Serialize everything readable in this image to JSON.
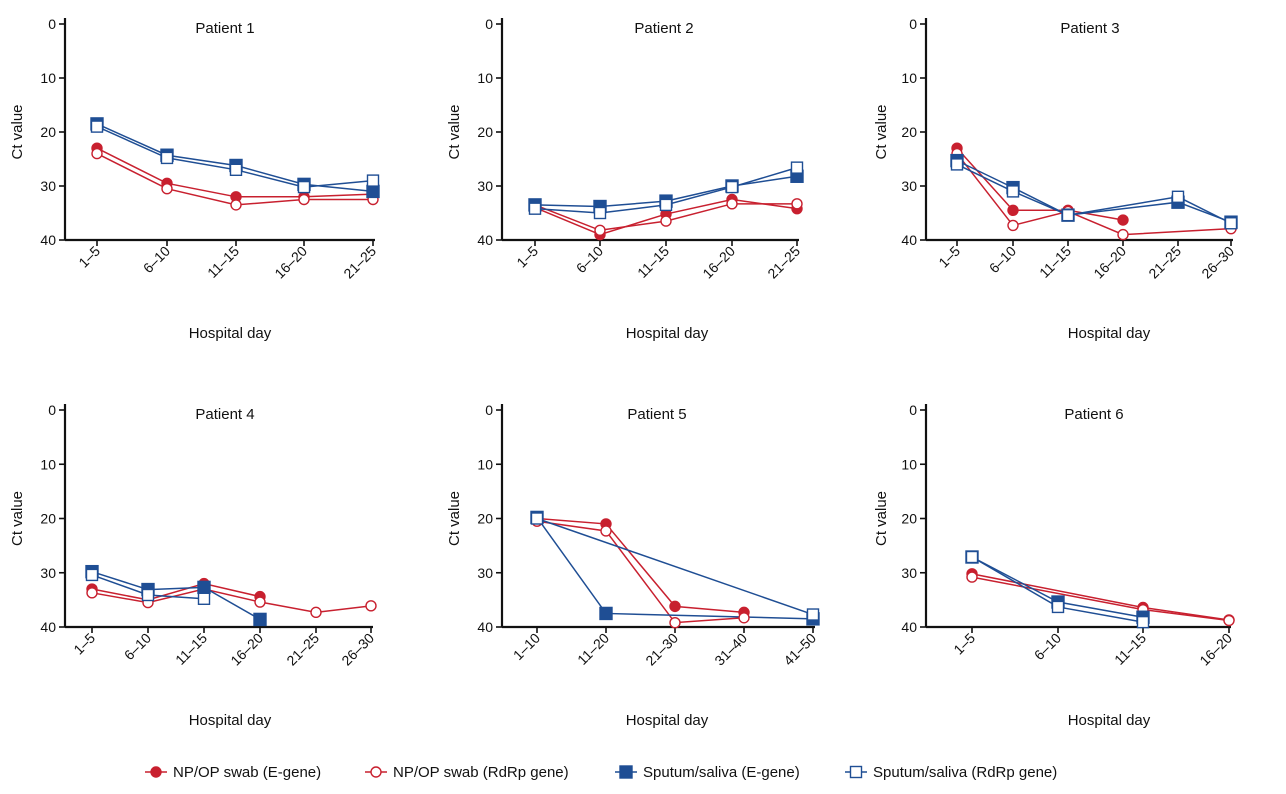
{
  "colors": {
    "red": "#c8202f",
    "blue": "#1f4e94",
    "axis": "#111111"
  },
  "legend": [
    {
      "label": "NP/OP swab (E-gene)",
      "color": "#c8202f",
      "marker": "circle",
      "filled": true
    },
    {
      "label": "NP/OP swab (RdRp gene)",
      "color": "#c8202f",
      "marker": "circle",
      "filled": false
    },
    {
      "label": "Sputum/saliva (E-gene)",
      "color": "#1f4e94",
      "marker": "square",
      "filled": true
    },
    {
      "label": "Sputum/saliva (RdRp gene)",
      "color": "#1f4e94",
      "marker": "square",
      "filled": false
    }
  ],
  "chart_data": [
    {
      "type": "line",
      "title": "Patient 1",
      "xlabel": "Hospital day",
      "ylabel": "Ct value",
      "ylim": [
        0,
        40
      ],
      "yticks": [
        "0",
        "10",
        "20",
        "30",
        "40"
      ],
      "y_inverted": true,
      "categories": [
        "1–5",
        "6–10",
        "11–15",
        "16–20",
        "21–25"
      ],
      "series": [
        {
          "name": "NP/OP swab (E-gene)",
          "values": [
            23,
            29.5,
            32,
            32,
            31.5
          ]
        },
        {
          "name": "NP/OP swab (RdRp gene)",
          "values": [
            24,
            30.5,
            33.5,
            32.5,
            32.5
          ]
        },
        {
          "name": "Sputum/saliva (E-gene)",
          "values": [
            18.5,
            24.3,
            26.2,
            29.7,
            31
          ]
        },
        {
          "name": "Sputum/saliva (RdRp gene)",
          "values": [
            19,
            24.8,
            27,
            30.2,
            29
          ]
        }
      ]
    },
    {
      "type": "line",
      "title": "Patient 2",
      "xlabel": "Hospital day",
      "ylabel": "Ct value",
      "ylim": [
        0,
        40
      ],
      "yticks": [
        "0",
        "10",
        "20",
        "30",
        "40"
      ],
      "y_inverted": true,
      "categories": [
        "1–5",
        "6–10",
        "11–15",
        "16–20",
        "21–25"
      ],
      "series": [
        {
          "name": "NP/OP swab (E-gene)",
          "values": [
            34,
            39,
            35.2,
            32.5,
            34.2
          ]
        },
        {
          "name": "NP/OP swab (RdRp gene)",
          "values": [
            33.5,
            38.2,
            36.5,
            33.3,
            33.3
          ]
        },
        {
          "name": "Sputum/saliva (E-gene)",
          "values": [
            33.5,
            33.8,
            32.8,
            30,
            28.2
          ]
        },
        {
          "name": "Sputum/saliva (RdRp gene)",
          "values": [
            34.2,
            35,
            33.5,
            30.2,
            26.6
          ]
        }
      ]
    },
    {
      "type": "line",
      "title": "Patient 3",
      "xlabel": "Hospital day",
      "ylabel": "Ct value",
      "ylim": [
        0,
        40
      ],
      "yticks": [
        "0",
        "10",
        "20",
        "30",
        "40"
      ],
      "y_inverted": true,
      "categories": [
        "1–5",
        "6–10",
        "11–15",
        "16–20",
        "21–25",
        "26–30"
      ],
      "series": [
        {
          "name": "NP/OP swab (E-gene)",
          "values": [
            23,
            34.5,
            34.5,
            36.3,
            null,
            null
          ]
        },
        {
          "name": "NP/OP swab (RdRp gene)",
          "values": [
            24,
            37.3,
            34.7,
            39,
            null,
            37.9
          ]
        },
        {
          "name": "Sputum/saliva (E-gene)",
          "values": [
            25.3,
            30.3,
            35.4,
            null,
            33,
            36.7
          ]
        },
        {
          "name": "Sputum/saliva (RdRp gene)",
          "values": [
            26,
            31,
            35.4,
            null,
            32,
            36.9
          ]
        }
      ]
    },
    {
      "type": "line",
      "title": "Patient 4",
      "xlabel": "Hospital day",
      "ylabel": "Ct value",
      "ylim": [
        0,
        40
      ],
      "yticks": [
        "0",
        "10",
        "20",
        "30",
        "40"
      ],
      "y_inverted": true,
      "categories": [
        "1–5",
        "6–10",
        "11–15",
        "16–20",
        "21–25",
        "26–30"
      ],
      "series": [
        {
          "name": "NP/OP swab (E-gene)",
          "values": [
            33,
            35,
            32,
            34.4,
            null,
            null
          ]
        },
        {
          "name": "NP/OP swab (RdRp gene)",
          "values": [
            33.7,
            35.5,
            33,
            35.4,
            37.3,
            36.1
          ]
        },
        {
          "name": "Sputum/saliva (E-gene)",
          "values": [
            29.8,
            33.1,
            32.7,
            38.6,
            null,
            null
          ]
        },
        {
          "name": "Sputum/saliva (RdRp gene)",
          "values": [
            30.4,
            34.1,
            34.8,
            null,
            null,
            null
          ]
        }
      ]
    },
    {
      "type": "line",
      "title": "Patient 5",
      "xlabel": "Hospital day",
      "ylabel": "Ct value",
      "ylim": [
        0,
        40
      ],
      "yticks": [
        "0",
        "10",
        "20",
        "30",
        "40"
      ],
      "y_inverted": true,
      "categories": [
        "1–10",
        "11–20",
        "21–30",
        "31–40",
        "41–50"
      ],
      "series": [
        {
          "name": "NP/OP swab (E-gene)",
          "values": [
            20,
            21,
            36.2,
            37.3,
            null
          ]
        },
        {
          "name": "NP/OP swab (RdRp gene)",
          "values": [
            20.5,
            22.3,
            39.2,
            38.3,
            null
          ]
        },
        {
          "name": "Sputum/saliva (E-gene)",
          "values": [
            19.8,
            37.5,
            null,
            null,
            38.5
          ]
        },
        {
          "name": "Sputum/saliva (RdRp gene)",
          "values": [
            20,
            null,
            null,
            null,
            37.7
          ]
        }
      ]
    },
    {
      "type": "line",
      "title": "Patient 6",
      "xlabel": "Hospital day",
      "ylabel": "Ct value",
      "ylim": [
        0,
        40
      ],
      "yticks": [
        "0",
        "10",
        "20",
        "30",
        "40"
      ],
      "y_inverted": true,
      "categories": [
        "1–5",
        "6–10",
        "11–15",
        "16–20"
      ],
      "series": [
        {
          "name": "NP/OP swab (E-gene)",
          "values": [
            30.2,
            null,
            36.4,
            38.7
          ]
        },
        {
          "name": "NP/OP swab (RdRp gene)",
          "values": [
            30.8,
            null,
            36.8,
            38.8
          ]
        },
        {
          "name": "Sputum/saliva (E-gene)",
          "values": [
            27.1,
            35.4,
            38.2,
            null
          ]
        },
        {
          "name": "Sputum/saliva (RdRp gene)",
          "values": [
            27.1,
            36.3,
            39.1,
            null
          ]
        }
      ]
    }
  ]
}
